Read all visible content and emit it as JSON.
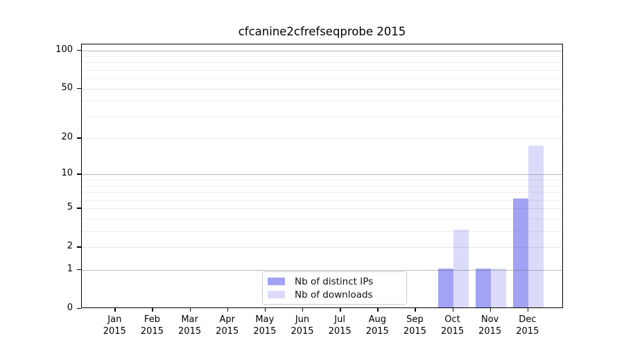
{
  "title": "cfcanine2cfrefseqprobe 2015",
  "legend": {
    "items": [
      {
        "label": "Nb of distinct IPs",
        "color": "#a3a3f4"
      },
      {
        "label": "Nb of downloads",
        "color": "#dbdbf9"
      }
    ]
  },
  "chart_data": {
    "type": "bar",
    "title": "cfcanine2cfrefseqprobe 2015",
    "categories": [
      "Jan 2015",
      "Feb 2015",
      "Mar 2015",
      "Apr 2015",
      "May 2015",
      "Jun 2015",
      "Jul 2015",
      "Aug 2015",
      "Sep 2015",
      "Oct 2015",
      "Nov 2015",
      "Dec 2015"
    ],
    "x_tick_months": [
      "Jan",
      "Feb",
      "Mar",
      "Apr",
      "May",
      "Jun",
      "Jul",
      "Aug",
      "Sep",
      "Oct",
      "Nov",
      "Dec"
    ],
    "x_tick_year": "2015",
    "series": [
      {
        "name": "Nb of distinct IPs",
        "color": "#a3a3f4",
        "values": [
          0,
          0,
          0,
          0,
          0,
          0,
          0,
          0,
          0,
          1,
          1,
          6
        ]
      },
      {
        "name": "Nb of downloads",
        "color": "#dbdbf9",
        "values": [
          0,
          0,
          0,
          0,
          0,
          0,
          0,
          0,
          0,
          3,
          1,
          17
        ]
      }
    ],
    "y_scale": "log1p",
    "y_ticks": [
      0,
      1,
      2,
      5,
      10,
      20,
      50,
      100
    ],
    "y_decade_ticks": [
      1,
      10,
      100
    ],
    "y_minor_ticks": [
      3,
      4,
      6,
      7,
      8,
      9,
      30,
      40,
      60,
      70,
      80,
      90
    ],
    "ylim": [
      0,
      111
    ],
    "xlabel": "",
    "ylabel": "",
    "grid": true,
    "legend_position": "lower center"
  }
}
